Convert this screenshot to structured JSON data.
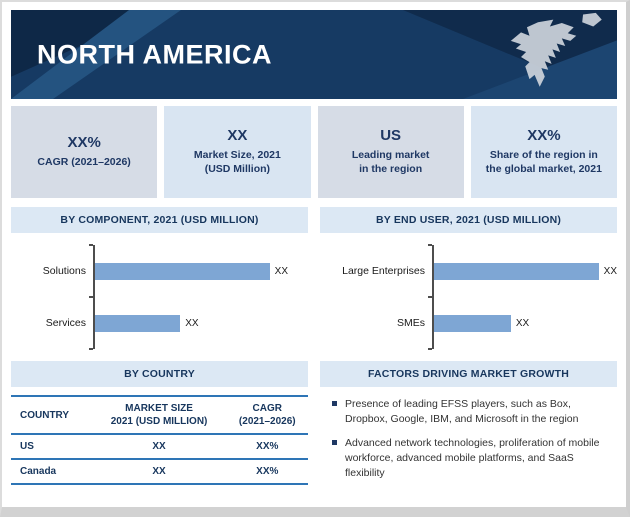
{
  "header": {
    "title": "NORTH AMERICA"
  },
  "stats": [
    {
      "value": "XX%",
      "label": "CAGR (2021–2026)"
    },
    {
      "value": "XX",
      "label": "Market Size, 2021\n(USD Million)"
    },
    {
      "value": "US",
      "label": "Leading market\nin the region"
    },
    {
      "value": "XX%",
      "label": "Share of the region in\nthe global market, 2021"
    }
  ],
  "sections": {
    "component": "BY COMPONENT, 2021 (USD MILLION)",
    "end_user": "BY END USER, 2021 (USD MILLION)",
    "country": "BY COUNTRY",
    "factors": "FACTORS DRIVING MARKET GROWTH"
  },
  "chart_data": [
    {
      "type": "bar",
      "orientation": "horizontal",
      "title": "BY COMPONENT, 2021 (USD MILLION)",
      "categories": [
        "Solutions",
        "Services"
      ],
      "values": [
        "XX",
        "XX"
      ],
      "bar_pct": [
        82,
        40
      ],
      "xlabel": "",
      "ylabel": "",
      "note": "values masked as XX in source; bar_pct are relative lengths read from pixels"
    },
    {
      "type": "bar",
      "orientation": "horizontal",
      "title": "BY END USER, 2021 (USD MILLION)",
      "categories": [
        "Large Enterprises",
        "SMEs"
      ],
      "values": [
        "XX",
        "XX"
      ],
      "bar_pct": [
        91,
        42
      ],
      "xlabel": "",
      "ylabel": "",
      "note": "values masked as XX in source; bar_pct are relative lengths read from pixels"
    }
  ],
  "country_table": {
    "headers": [
      "COUNTRY",
      "MARKET SIZE\n2021 (USD MILLION)",
      "CAGR\n(2021–2026)"
    ],
    "rows": [
      [
        "US",
        "XX",
        "XX%"
      ],
      [
        "Canada",
        "XX",
        "XX%"
      ]
    ]
  },
  "factors": [
    "Presence of leading EFSS players, such as Box, Dropbox, Google, IBM, and Microsoft in the region",
    "Advanced network technologies, proliferation of mobile workforce, advanced mobile platforms, and SaaS flexibility"
  ],
  "colors": {
    "banner_navy": "#163A63",
    "banner_dark": "#0E2847",
    "banner_light": "#245380",
    "accent_navy_text": "#1F3864",
    "section_bg": "#DCE8F4",
    "stat_bg_odd": "#D6DCE6",
    "stat_bg_even": "#D9E5F2",
    "bar_fill": "#7EA6D4",
    "table_rule_blue": "#2E75B6",
    "map_gray": "#CBD2DA"
  }
}
